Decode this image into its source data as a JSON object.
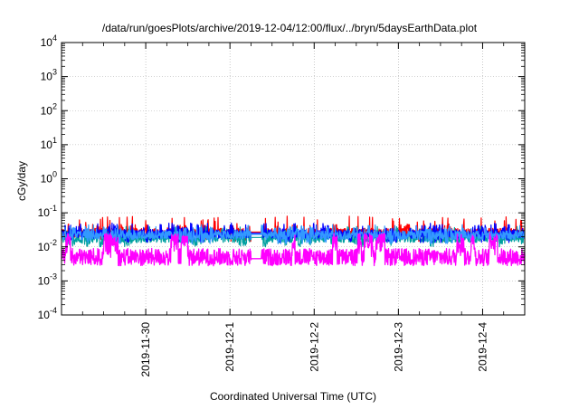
{
  "chart_data": {
    "type": "line",
    "title": "/data/run/goesPlots/archive/2019-12-04/12:00/flux/../bryn/5daysEarthData.plot",
    "xlabel": "Coordinated Universal Time (UTC)",
    "ylabel": "cGy/day",
    "yscale": "log",
    "ylim": [
      0.0001,
      10000
    ],
    "xlim": [
      "2019-11-29T00:00",
      "2019-12-04T12:00"
    ],
    "x_ticks": [
      "2019-11-30",
      "2019-12-1",
      "2019-12-2",
      "2019-12-3",
      "2019-12-4"
    ],
    "y_ticks": [
      {
        "base": "10",
        "exp": "4"
      },
      {
        "base": "10",
        "exp": "3"
      },
      {
        "base": "10",
        "exp": "2"
      },
      {
        "base": "10",
        "exp": "1"
      },
      {
        "base": "10",
        "exp": "0"
      },
      {
        "base": "10",
        "exp": "-1"
      },
      {
        "base": "10",
        "exp": "-2"
      },
      {
        "base": "10",
        "exp": "-3"
      },
      {
        "base": "10",
        "exp": "-4"
      }
    ],
    "grid": true,
    "data_gap": [
      "2019-12-01T06:00",
      "2019-12-01T09:00"
    ],
    "series": [
      {
        "color": "#ff0000",
        "typical": 0.026,
        "spike_max": 0.08
      },
      {
        "color": "#0000ff",
        "typical": 0.024,
        "spike_max": 0.05
      },
      {
        "color": "#00a0a0",
        "typical": 0.018,
        "spike_max": 0.04
      },
      {
        "color": "#3399ff",
        "typical": 0.022,
        "spike_max": 0.045
      },
      {
        "color": "#ff00ff",
        "typical": 0.005,
        "spike_max": 0.035
      }
    ]
  }
}
